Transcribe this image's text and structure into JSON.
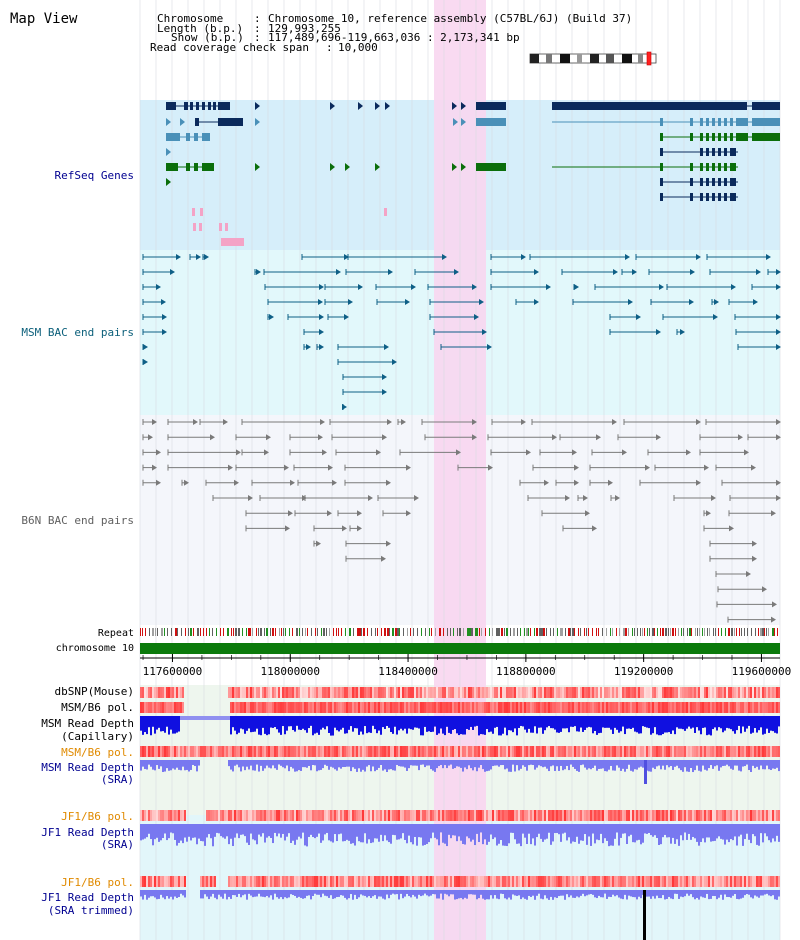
{
  "header": {
    "title": "Map View",
    "rows": [
      {
        "label": "Chromosome",
        "value": "Chromosome 10, reference assembly (C57BL/6J) (Build 37)"
      },
      {
        "label": "Length (b.p.)",
        "value": "129,993,255"
      },
      {
        "label": "Show (b.p.)",
        "value": "117,489,696-119,663,036 : 2,173,341 bp"
      },
      {
        "label": "Read coverage check span",
        "value": "10,000"
      }
    ]
  },
  "tracks": {
    "refseq": "RefSeq Genes",
    "msm_bac": "MSM BAC end pairs",
    "b6n_bac": "B6N BAC end pairs",
    "repeat": "Repeat",
    "chromosome": "chromosome 10",
    "dbsnp": "dbSNP(Mouse)",
    "msm_pol1": "MSM/B6 pol.",
    "msm_depth_cap": [
      "MSM Read Depth",
      "(Capillary)"
    ],
    "msm_pol2": "MSM/B6 pol.",
    "msm_depth_sra": [
      "MSM Read Depth",
      "(SRA)"
    ],
    "jf1_pol1": "JF1/B6 pol.",
    "jf1_depth_sra": [
      "JF1 Read Depth",
      "(SRA)"
    ],
    "jf1_pol2": "JF1/B6 pol.",
    "jf1_depth_trim": [
      "JF1 Read Depth",
      "(SRA trimmed)"
    ]
  },
  "axis": {
    "start": 117489696,
    "end": 119663036,
    "ticks": [
      "117600000",
      "118000000",
      "118400000",
      "118800000",
      "119200000",
      "119600000"
    ]
  },
  "highlight": {
    "from": 118400000,
    "to": 118570000
  },
  "colors": {
    "refseq_bg": "#d6eefa",
    "msm_bg": "#e2f8fb",
    "b6n_bg": "#f4f6fb",
    "gene_navy": "#0b2a5c",
    "gene_teal": "#4a90b8",
    "gene_green": "#0b6e0b",
    "pink_feature": "#f4a3c6",
    "highlight": "#f8d6ef",
    "msm_color": "#0e5f86",
    "b6n_color": "#7a7a7a",
    "chromosome": "#0b7a0b",
    "depth_blue": "#1010e0",
    "depth_light": "#7878f0",
    "label_navy": "#000090",
    "label_teal": "#0b5f7a",
    "label_orange": "#e08a00"
  }
}
